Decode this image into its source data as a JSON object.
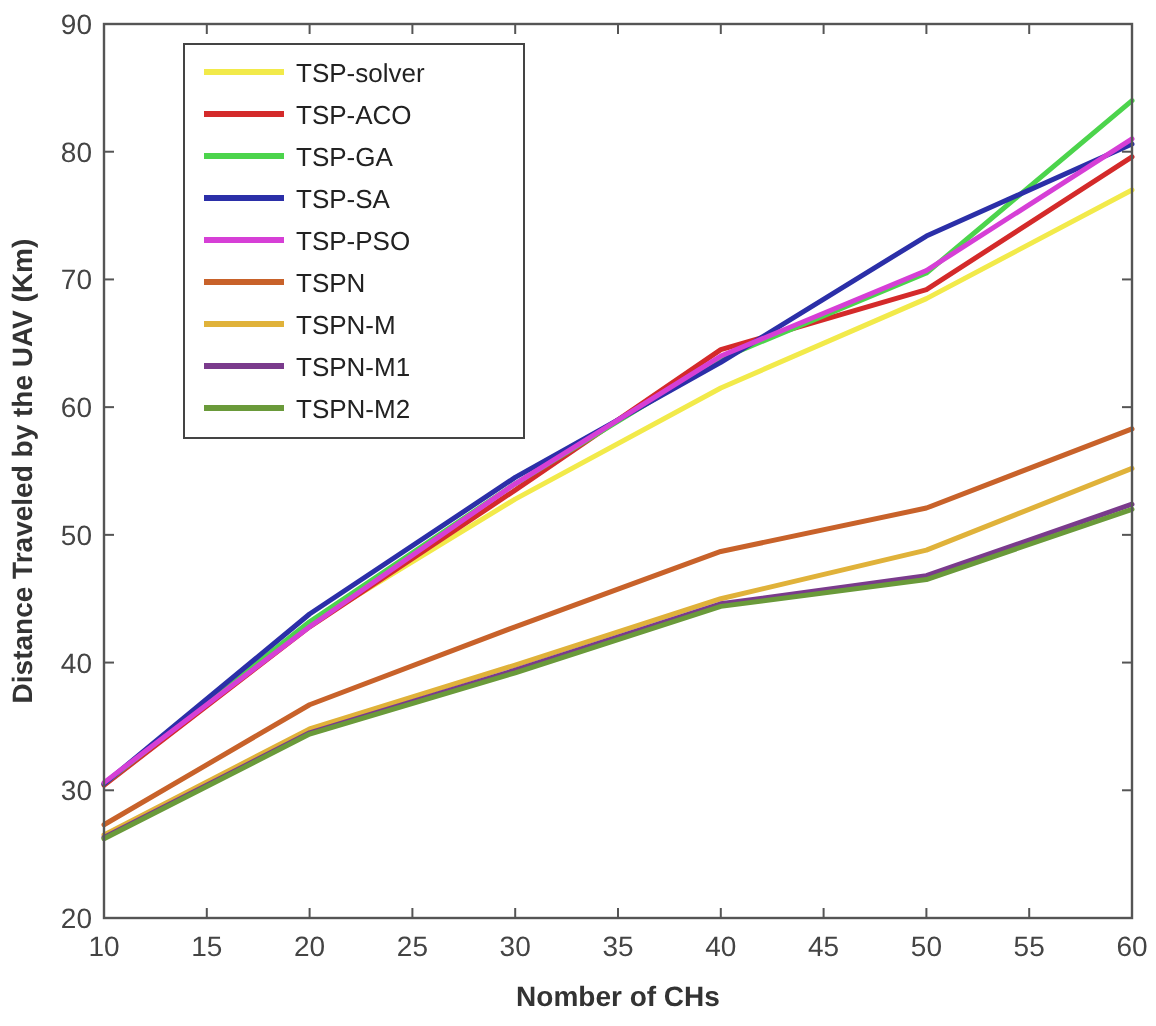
{
  "chart_data": {
    "type": "line",
    "xlabel": "Nomber of CHs",
    "ylabel": "Distance Traveled by the UAV (Km)",
    "x": [
      10,
      20,
      30,
      40,
      50,
      60
    ],
    "xlim": [
      10,
      60
    ],
    "xticks": [
      10,
      15,
      20,
      25,
      30,
      35,
      40,
      45,
      50,
      55,
      60
    ],
    "ylim": [
      20,
      90
    ],
    "yticks": [
      20,
      30,
      40,
      50,
      60,
      70,
      80,
      90
    ],
    "grid": false,
    "legend": "top left",
    "marker": "none",
    "line_style": "solid",
    "series": [
      {
        "name": "TSP-solver",
        "color": "#f2ea4a",
        "values": [
          30.5,
          43.0,
          52.8,
          61.5,
          68.5,
          77.0
        ]
      },
      {
        "name": "TSP-ACO",
        "color": "#d42a2a",
        "values": [
          30.4,
          42.8,
          53.5,
          64.5,
          69.2,
          79.6
        ]
      },
      {
        "name": "TSP-GA",
        "color": "#4cd44c",
        "values": [
          30.5,
          43.2,
          54.0,
          63.8,
          70.5,
          84.0
        ]
      },
      {
        "name": "TSP-SA",
        "color": "#2b2fa8",
        "values": [
          30.5,
          43.8,
          54.5,
          63.5,
          73.4,
          80.6
        ]
      },
      {
        "name": "TSP-PSO",
        "color": "#d63fd6",
        "values": [
          30.6,
          42.8,
          54.0,
          64.0,
          70.7,
          81.0
        ]
      },
      {
        "name": "TSPN",
        "color": "#c8622a",
        "values": [
          27.3,
          36.7,
          42.8,
          48.7,
          52.1,
          58.3
        ]
      },
      {
        "name": "TSPN-M",
        "color": "#e0b23a",
        "values": [
          26.5,
          34.8,
          39.8,
          45.0,
          48.8,
          55.2
        ]
      },
      {
        "name": "TSPN-M1",
        "color": "#7a3b8c",
        "values": [
          26.3,
          34.5,
          39.4,
          44.6,
          46.8,
          52.4
        ]
      },
      {
        "name": "TSPN-M2",
        "color": "#6a9a3a",
        "values": [
          26.2,
          34.4,
          39.2,
          44.4,
          46.5,
          52.0
        ]
      }
    ]
  }
}
